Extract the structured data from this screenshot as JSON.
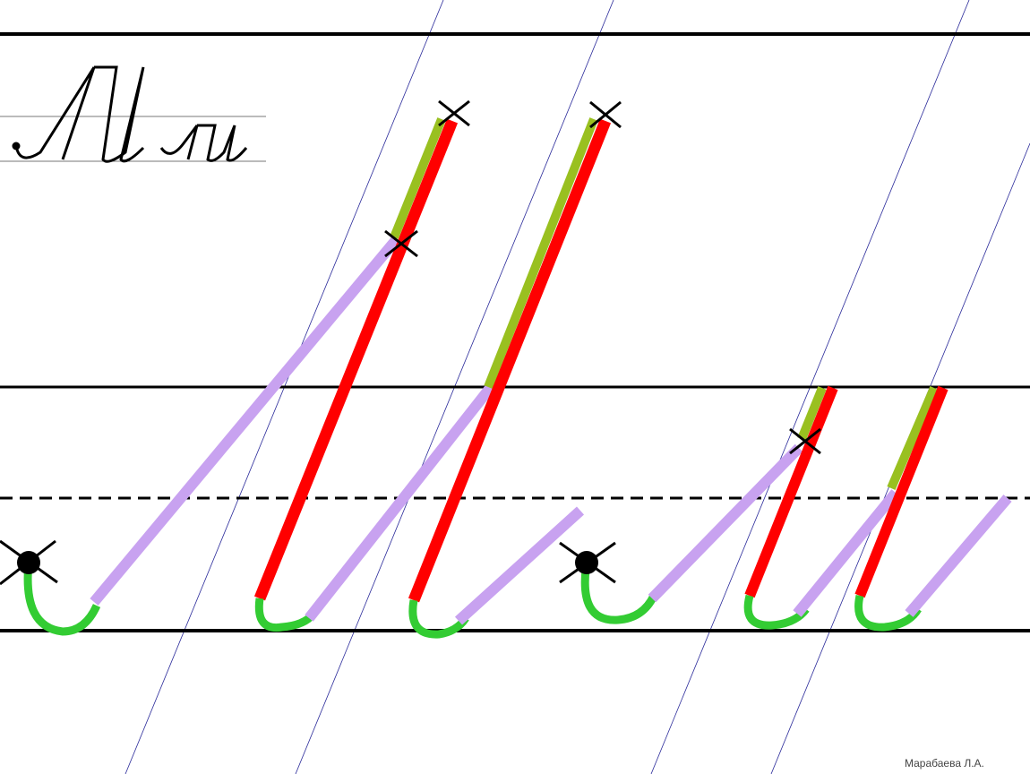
{
  "author": "Марабаева Л.А."
}
